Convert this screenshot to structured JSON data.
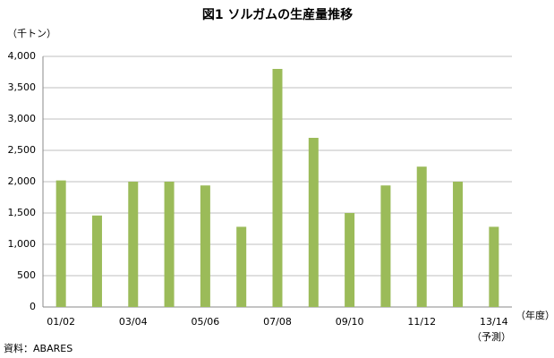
{
  "chart_data": {
    "type": "bar",
    "title": "図1 ソルガムの生産量推移",
    "y_axis_label": "（千トン）",
    "x_axis_label": "（年度）",
    "annotation": "（予測）",
    "source": "資料：ABARES",
    "categories": [
      "01/02",
      null,
      "03/04",
      null,
      "05/06",
      null,
      "07/08",
      null,
      "09/10",
      null,
      "11/12",
      null,
      "13/14"
    ],
    "values": [
      2020,
      1460,
      2000,
      2000,
      1940,
      1280,
      3800,
      2700,
      1500,
      1940,
      2240,
      2000,
      1280
    ],
    "color": "#9bbb59",
    "ylim": [
      0,
      4000
    ],
    "yticks": [
      0,
      500,
      {
        "value": 1000,
        "label": "1,000"
      },
      {
        "value": 1500,
        "label": "1,500"
      },
      {
        "value": 2000,
        "label": "2,000"
      },
      {
        "value": 2500,
        "label": "2,500"
      },
      {
        "value": 3000,
        "label": "3,000"
      },
      {
        "value": 3500,
        "label": "3,500"
      },
      {
        "value": 4000,
        "label": "4,000"
      }
    ],
    "grid": true
  }
}
